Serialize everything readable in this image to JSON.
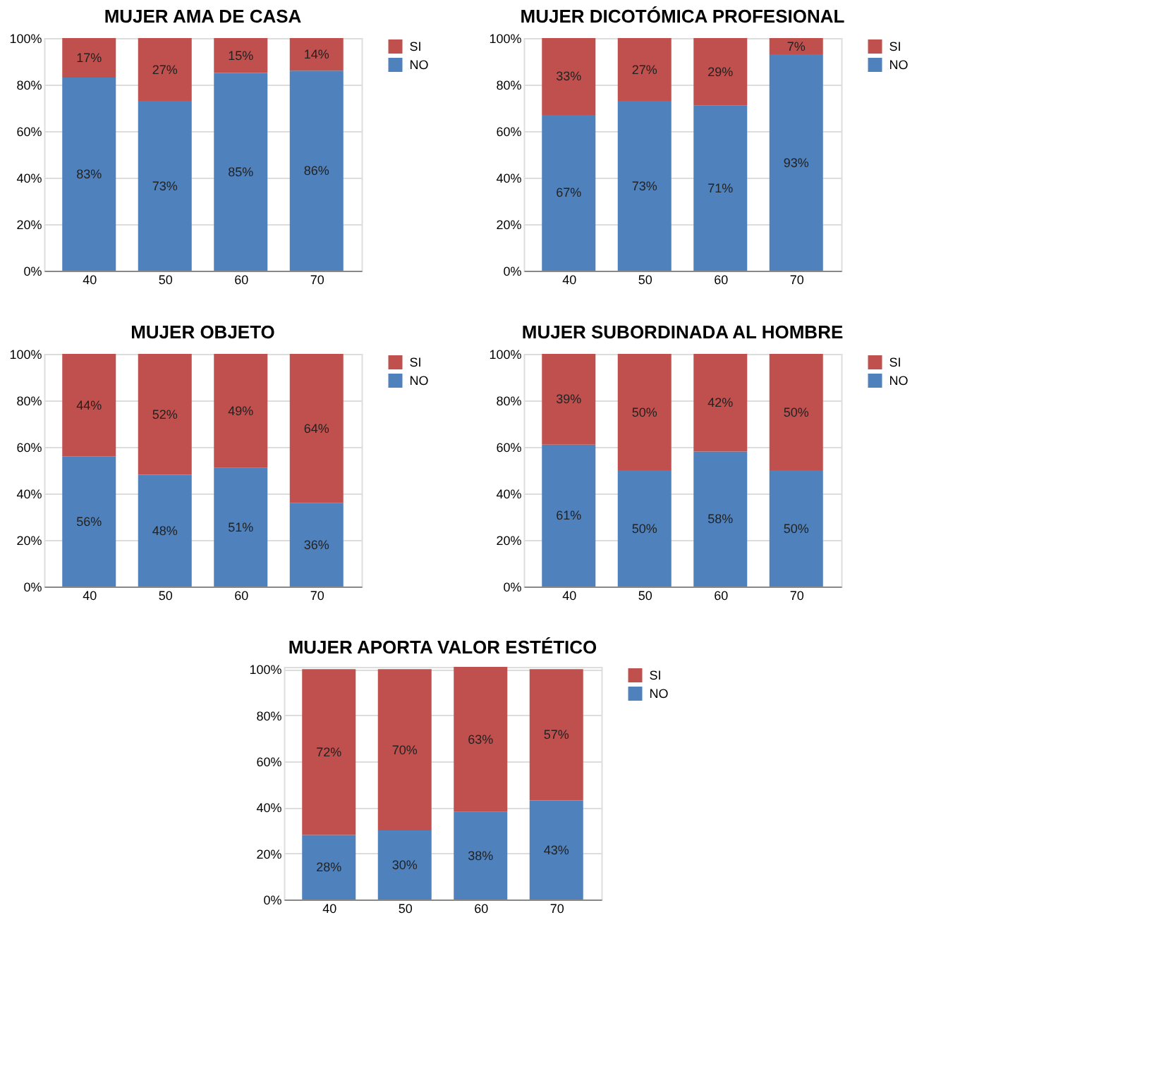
{
  "chart_data": [
    {
      "type": "bar",
      "stacked": true,
      "title": "MUJER AMA DE CASA",
      "categories": [
        "40",
        "50",
        "60",
        "70"
      ],
      "ylim": [
        0,
        100
      ],
      "yticks": [
        {
          "value": 0,
          "label": "0%"
        },
        {
          "value": 20,
          "label": "20%"
        },
        {
          "value": 40,
          "label": "40%"
        },
        {
          "value": 60,
          "label": "60%"
        },
        {
          "value": 80,
          "label": "80%"
        },
        {
          "value": 100,
          "label": "100%"
        }
      ],
      "grid": "y",
      "legend": "right",
      "series": [
        {
          "name": "NO",
          "color": "#4f81bd",
          "values": [
            83,
            73,
            85,
            86
          ],
          "value_labels": [
            "83%",
            "73%",
            "85%",
            "86%"
          ]
        },
        {
          "name": "SI",
          "color": "#c0504d",
          "values": [
            17,
            27,
            15,
            14
          ],
          "value_labels": [
            "17%",
            "27%",
            "15%",
            "14%"
          ]
        }
      ]
    },
    {
      "type": "bar",
      "stacked": true,
      "title": "MUJER DICOTÓMICA PROFESIONAL",
      "categories": [
        "40",
        "50",
        "60",
        "70"
      ],
      "ylim": [
        0,
        100
      ],
      "yticks": [
        {
          "value": 0,
          "label": "0%"
        },
        {
          "value": 20,
          "label": "20%"
        },
        {
          "value": 40,
          "label": "40%"
        },
        {
          "value": 60,
          "label": "60%"
        },
        {
          "value": 80,
          "label": "80%"
        },
        {
          "value": 100,
          "label": "100%"
        }
      ],
      "grid": "y",
      "legend": "right",
      "series": [
        {
          "name": "NO",
          "color": "#4f81bd",
          "values": [
            67,
            73,
            71,
            93
          ],
          "value_labels": [
            "67%",
            "73%",
            "71%",
            "93%"
          ]
        },
        {
          "name": "SI",
          "color": "#c0504d",
          "values": [
            33,
            27,
            29,
            7
          ],
          "value_labels": [
            "33%",
            "27%",
            "29%",
            "7%"
          ]
        }
      ]
    },
    {
      "type": "bar",
      "stacked": true,
      "title": "MUJER OBJETO",
      "categories": [
        "40",
        "50",
        "60",
        "70"
      ],
      "ylim": [
        0,
        100
      ],
      "yticks": [
        {
          "value": 0,
          "label": "0%"
        },
        {
          "value": 20,
          "label": "20%"
        },
        {
          "value": 40,
          "label": "40%"
        },
        {
          "value": 60,
          "label": "60%"
        },
        {
          "value": 80,
          "label": "80%"
        },
        {
          "value": 100,
          "label": "100%"
        }
      ],
      "grid": "y",
      "legend": "right",
      "series": [
        {
          "name": "NO",
          "color": "#4f81bd",
          "values": [
            56,
            48,
            51,
            36
          ],
          "value_labels": [
            "56%",
            "48%",
            "51%",
            "36%"
          ]
        },
        {
          "name": "SI",
          "color": "#c0504d",
          "values": [
            44,
            52,
            49,
            64
          ],
          "value_labels": [
            "44%",
            "52%",
            "49%",
            "64%"
          ]
        }
      ]
    },
    {
      "type": "bar",
      "stacked": true,
      "title": "MUJER SUBORDINADA AL HOMBRE",
      "categories": [
        "40",
        "50",
        "60",
        "70"
      ],
      "ylim": [
        0,
        100
      ],
      "yticks": [
        {
          "value": 0,
          "label": "0%"
        },
        {
          "value": 20,
          "label": "20%"
        },
        {
          "value": 40,
          "label": "40%"
        },
        {
          "value": 60,
          "label": "60%"
        },
        {
          "value": 80,
          "label": "80%"
        },
        {
          "value": 100,
          "label": "100%"
        }
      ],
      "grid": "y",
      "legend": "right",
      "series": [
        {
          "name": "NO",
          "color": "#4f81bd",
          "values": [
            61,
            50,
            58,
            50
          ],
          "value_labels": [
            "61%",
            "50%",
            "58%",
            "50%"
          ]
        },
        {
          "name": "SI",
          "color": "#c0504d",
          "values": [
            39,
            50,
            42,
            50
          ],
          "value_labels": [
            "39%",
            "50%",
            "42%",
            "50%"
          ]
        }
      ]
    },
    {
      "type": "bar",
      "stacked": true,
      "title": "MUJER APORTA VALOR ESTÉTICO",
      "categories": [
        "40",
        "50",
        "60",
        "70"
      ],
      "ylim": [
        0,
        101
      ],
      "yticks": [
        {
          "value": 0,
          "label": "0%"
        },
        {
          "value": 20,
          "label": "20%"
        },
        {
          "value": 40,
          "label": "40%"
        },
        {
          "value": 60,
          "label": "60%"
        },
        {
          "value": 80,
          "label": "80%"
        },
        {
          "value": 100,
          "label": "100%"
        }
      ],
      "grid": "y",
      "legend": "right",
      "series": [
        {
          "name": "NO",
          "color": "#4f81bd",
          "values": [
            28,
            30,
            38,
            43
          ],
          "value_labels": [
            "28%",
            "30%",
            "38%",
            "43%"
          ]
        },
        {
          "name": "SI",
          "color": "#c0504d",
          "values": [
            72,
            70,
            63,
            57
          ],
          "value_labels": [
            "72%",
            "70%",
            "63%",
            "57%"
          ]
        }
      ]
    }
  ]
}
